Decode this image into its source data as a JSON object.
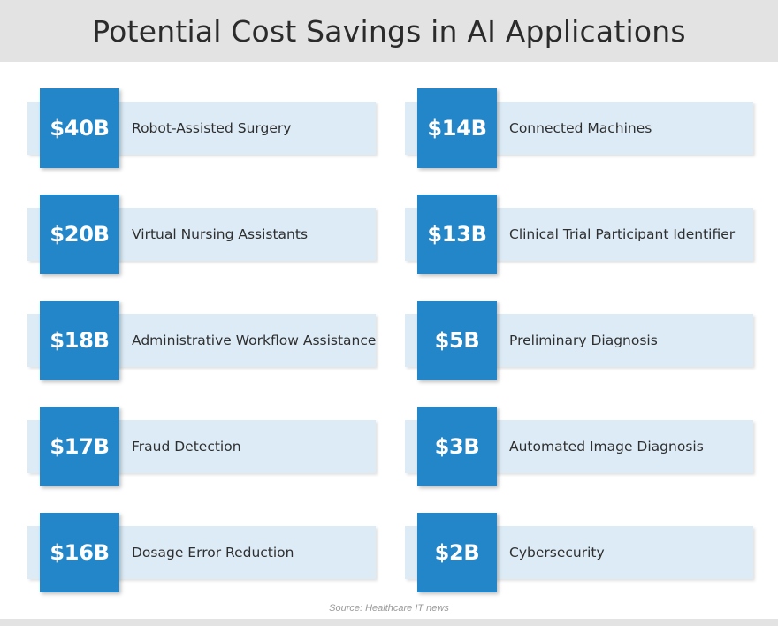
{
  "chart_data": {
    "type": "table",
    "title": "Potential Cost Savings in AI Applications",
    "source": "Source: Healthcare IT news",
    "items": [
      {
        "value": "$40B",
        "label": "Robot-Assisted Surgery"
      },
      {
        "value": "$20B",
        "label": "Virtual Nursing Assistants"
      },
      {
        "value": "$18B",
        "label": "Administrative Workflow Assistance"
      },
      {
        "value": "$17B",
        "label": "Fraud Detection"
      },
      {
        "value": "$16B",
        "label": "Dosage Error Reduction"
      },
      {
        "value": "$14B",
        "label": "Connected Machines"
      },
      {
        "value": "$13B",
        "label": "Clinical Trial Participant Identifier"
      },
      {
        "value": "$5B",
        "label": "Preliminary Diagnosis"
      },
      {
        "value": "$3B",
        "label": "Automated Image Diagnosis"
      },
      {
        "value": "$2B",
        "label": "Cybersecurity"
      }
    ],
    "colors": {
      "header_bg": "#e3e3e3",
      "value_box": "#2386c8",
      "label_bar": "#dcebf6"
    }
  }
}
